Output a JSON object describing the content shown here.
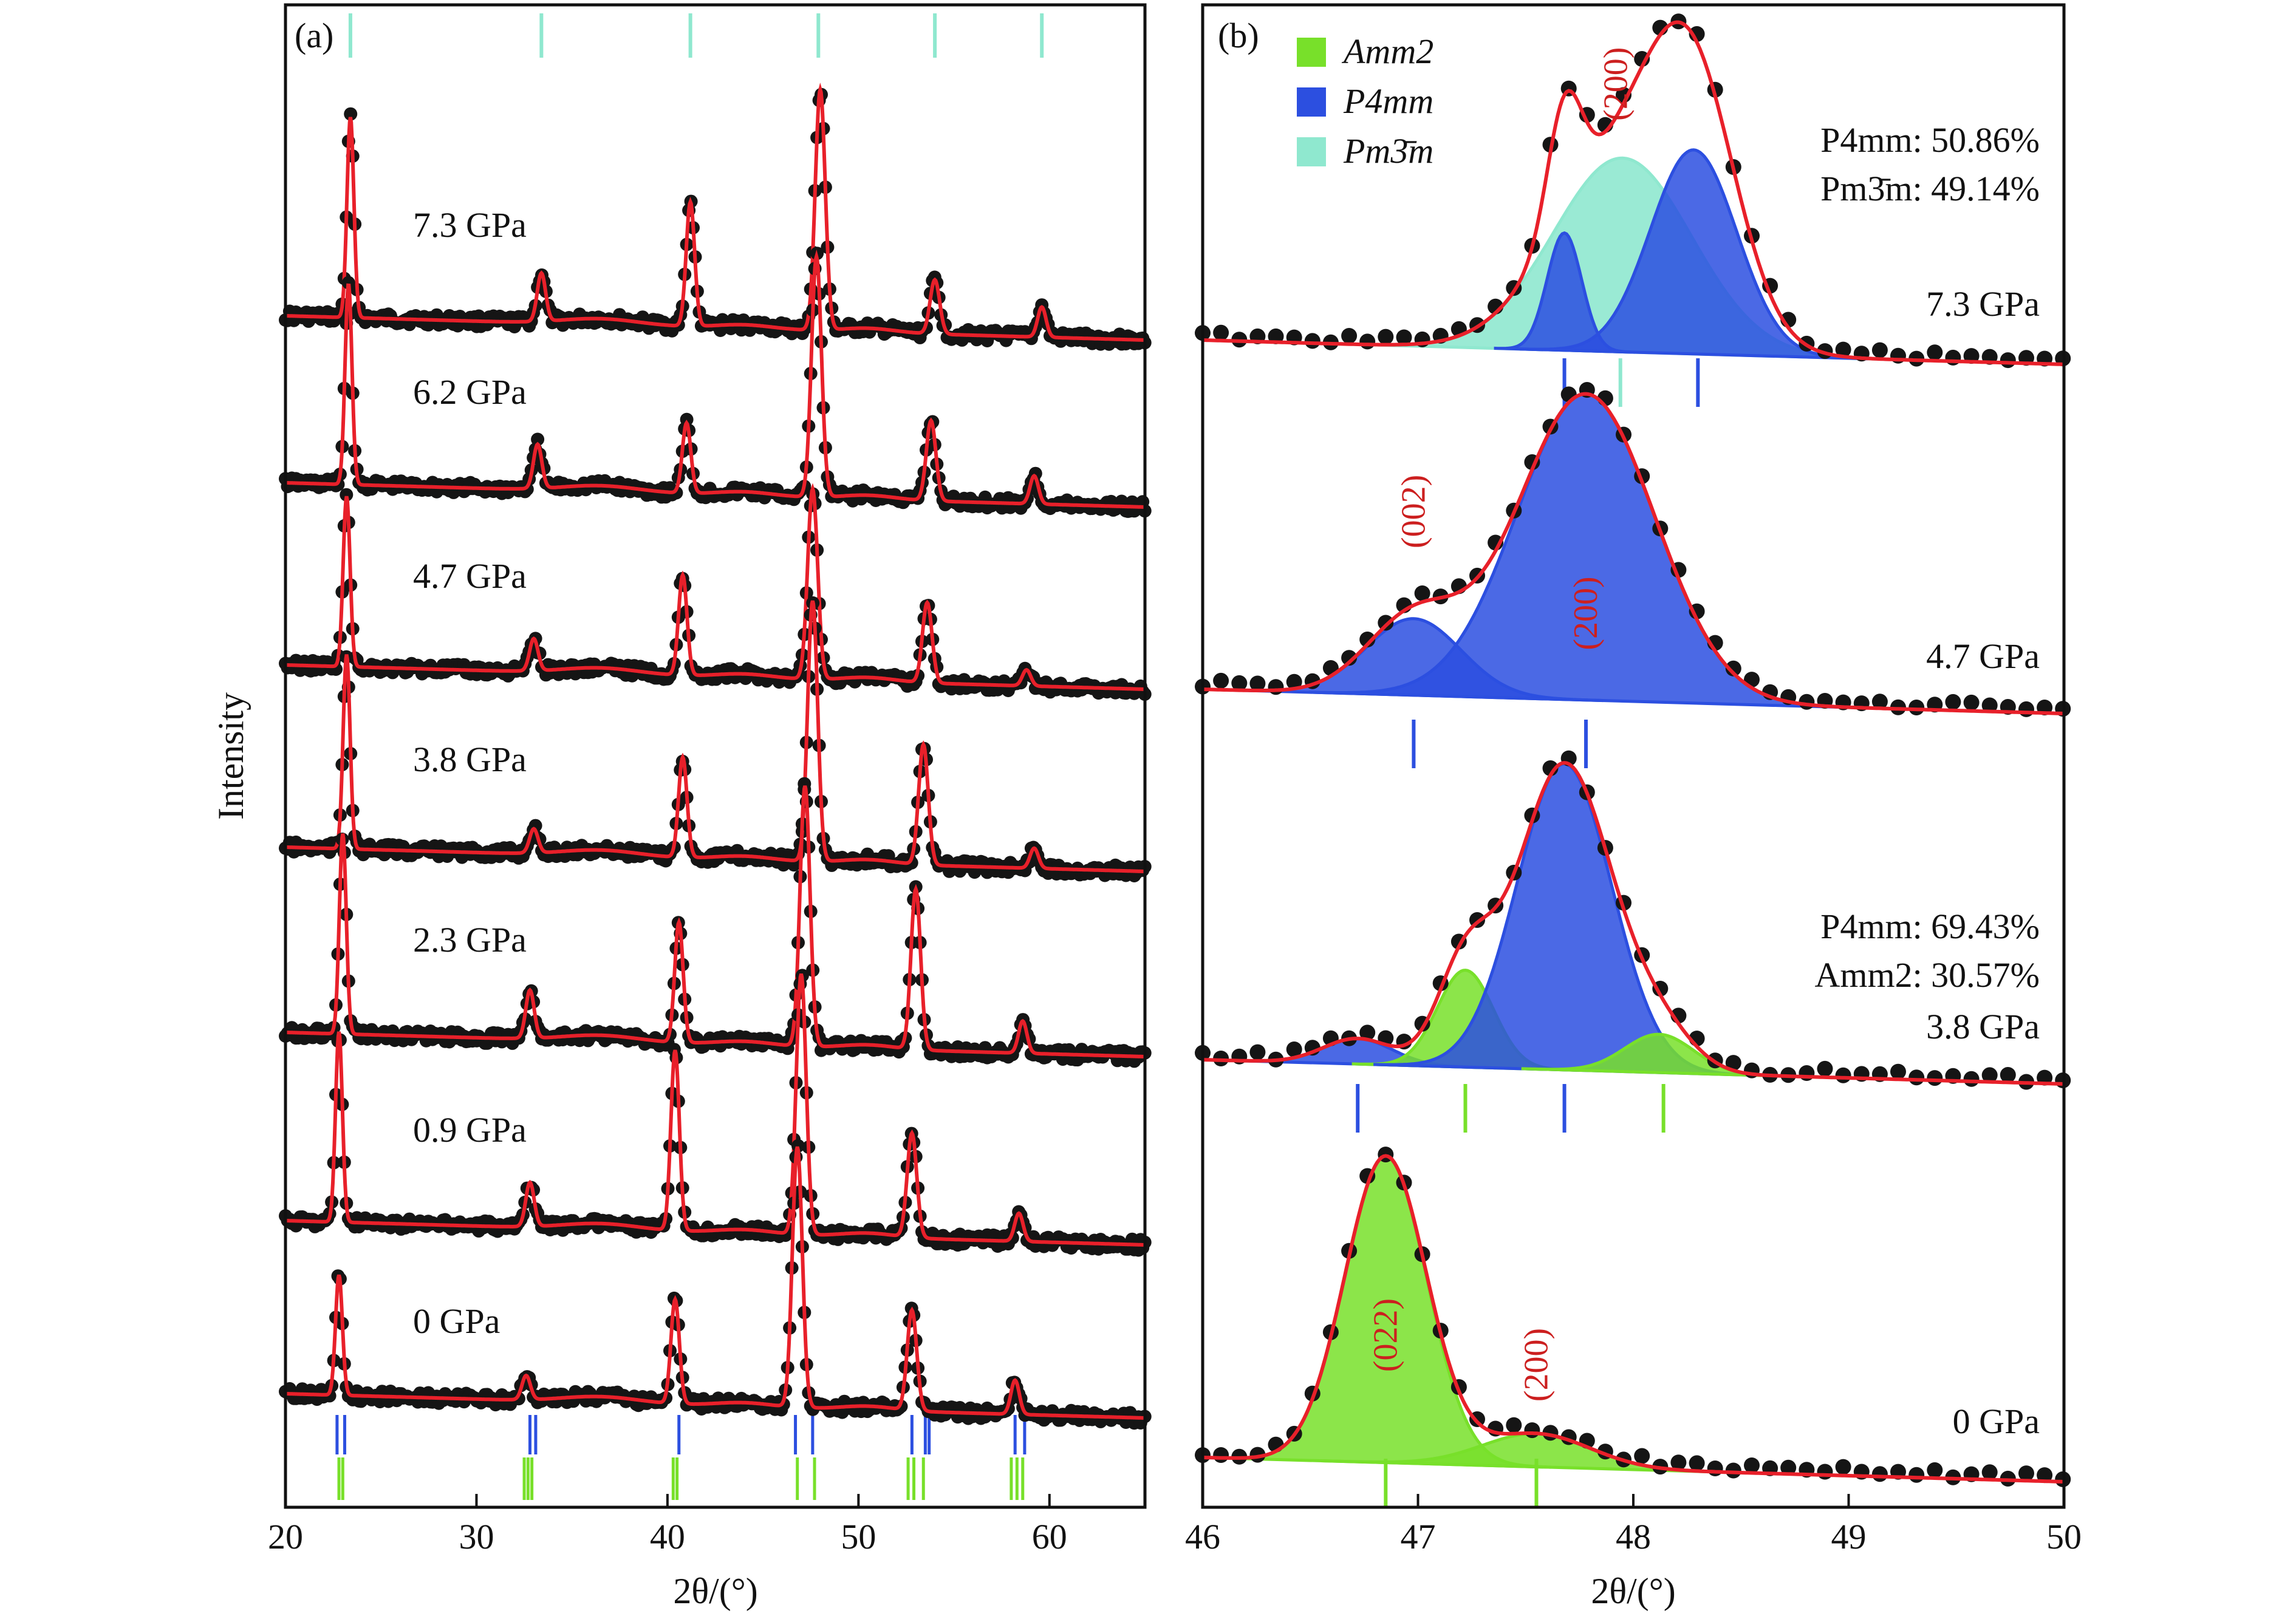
{
  "colors": {
    "fit": "#e8202a",
    "point": "#151515",
    "amm2": "#78e02a",
    "p4mm": "#2c4fe0",
    "pm3m": "#8fe8cf",
    "hkl": "#cc1f1f",
    "axis": "#111111"
  },
  "chart_data": [
    {
      "type": "line",
      "panel": "(a)",
      "xlabel": "2θ/(°)",
      "ylabel": "Intensity",
      "xlim": [
        20,
        65
      ],
      "xticks": [
        "20",
        "30",
        "40",
        "50",
        "60"
      ],
      "series": [
        {
          "name": "7.3 GPa",
          "label": "7.3 GPa",
          "peaks": [
            [
              23.4,
              1.0
            ],
            [
              33.4,
              0.24
            ],
            [
              41.2,
              0.62
            ],
            [
              48.0,
              1.2
            ],
            [
              54.0,
              0.27
            ],
            [
              59.6,
              0.15
            ]
          ]
        },
        {
          "name": "6.2 GPa",
          "label": "6.2 GPa",
          "peaks": [
            [
              23.3,
              1.0
            ],
            [
              33.2,
              0.22
            ],
            [
              41.0,
              0.35
            ],
            [
              47.8,
              1.2
            ],
            [
              53.8,
              0.4
            ],
            [
              59.2,
              0.14
            ]
          ]
        },
        {
          "name": "4.7 GPa",
          "label": "4.7 GPa",
          "peaks": [
            [
              23.2,
              0.85
            ],
            [
              33.0,
              0.16
            ],
            [
              40.8,
              0.5
            ],
            [
              47.6,
              0.95
            ],
            [
              53.6,
              0.4
            ],
            [
              58.8,
              0.08
            ]
          ]
        },
        {
          "name": "3.8 GPa",
          "label": "3.8 GPa",
          "peaks": [
            [
              23.2,
              0.97
            ],
            [
              33.0,
              0.12
            ],
            [
              40.8,
              0.5
            ],
            [
              47.6,
              1.3
            ],
            [
              53.4,
              0.6
            ],
            [
              59.2,
              0.1
            ]
          ]
        },
        {
          "name": "2.3 GPa",
          "label": "2.3 GPa",
          "peaks": [
            [
              23.0,
              1.0
            ],
            [
              32.8,
              0.24
            ],
            [
              40.6,
              0.6
            ],
            [
              47.2,
              1.3
            ],
            [
              53.0,
              0.8
            ],
            [
              58.6,
              0.16
            ]
          ]
        },
        {
          "name": "0.9 GPa",
          "label": "0.9 GPa",
          "peaks": [
            [
              22.8,
              0.95
            ],
            [
              32.8,
              0.22
            ],
            [
              40.4,
              0.9
            ],
            [
              47.0,
              1.3
            ],
            [
              52.8,
              0.52
            ],
            [
              58.4,
              0.14
            ]
          ]
        },
        {
          "name": "0 GPa",
          "label": "0 GPa",
          "peaks": [
            [
              22.8,
              0.6
            ],
            [
              32.6,
              0.12
            ],
            [
              40.4,
              0.52
            ],
            [
              46.8,
              1.3
            ],
            [
              52.8,
              0.5
            ],
            [
              58.2,
              0.17
            ]
          ]
        }
      ],
      "reference_marks": {
        "pm3m": [
          23.4,
          33.4,
          41.2,
          47.9,
          54.0,
          59.6
        ],
        "p4mm": [
          22.7,
          23.1,
          32.8,
          33.1,
          40.6,
          46.7,
          47.6,
          52.8,
          53.5,
          53.7,
          58.2,
          58.7
        ],
        "amm2": [
          22.8,
          23.0,
          32.5,
          32.7,
          32.9,
          40.3,
          40.5,
          46.8,
          47.7,
          52.6,
          52.9,
          53.4,
          58.0,
          58.3,
          58.6
        ]
      }
    },
    {
      "type": "area",
      "panel": "(b)",
      "xlabel": "2θ/(°)",
      "xlim": [
        46,
        50
      ],
      "xticks": [
        "46",
        "47",
        "48",
        "49",
        "50"
      ],
      "legend": [
        {
          "name": "Amm2",
          "key": "amm2",
          "text": "Amm2"
        },
        {
          "name": "P4mm",
          "key": "p4mm",
          "text": "P4mm"
        },
        {
          "name": "Pm3̄m",
          "key": "pm3m",
          "text": "Pm3̄m"
        }
      ],
      "pressures": [
        {
          "label": "7.3 GPa",
          "fractions": [
            "P4mm: 50.86%",
            "Pm3̄m: 49.14%"
          ],
          "components": [
            {
              "phase": "pm3m",
              "center": 47.95,
              "height": 0.76,
              "width": 0.32
            },
            {
              "phase": "p4mm",
              "center": 47.68,
              "height": 0.46,
              "width": 0.08
            },
            {
              "phase": "p4mm",
              "center": 48.28,
              "height": 0.8,
              "width": 0.2
            }
          ],
          "hkl": [
            {
              "text": "(200)",
              "x": 47.92,
              "h": 1.05
            }
          ],
          "ticks": [
            {
              "phase": "p4mm",
              "x": 47.68
            },
            {
              "phase": "pm3m",
              "x": 47.94
            },
            {
              "phase": "p4mm",
              "x": 48.3
            }
          ]
        },
        {
          "label": "4.7 GPa",
          "fractions": [],
          "components": [
            {
              "phase": "p4mm",
              "center": 46.98,
              "height": 0.3,
              "width": 0.22
            },
            {
              "phase": "p4mm",
              "center": 47.78,
              "height": 1.2,
              "width": 0.32
            }
          ],
          "hkl": [
            {
              "text": "(002)",
              "x": 46.98,
              "h": 0.72
            },
            {
              "text": "(200)",
              "x": 47.78,
              "h": 0.34
            }
          ],
          "ticks": [
            {
              "phase": "p4mm",
              "x": 46.98
            },
            {
              "phase": "p4mm",
              "x": 47.78
            }
          ]
        },
        {
          "label": "3.8 GPa",
          "fractions": [
            "P4mm: 69.43%",
            "Amm2: 30.57%"
          ],
          "components": [
            {
              "phase": "p4mm",
              "center": 46.72,
              "height": 0.1,
              "width": 0.16
            },
            {
              "phase": "amm2",
              "center": 47.22,
              "height": 0.38,
              "width": 0.13
            },
            {
              "phase": "p4mm",
              "center": 47.68,
              "height": 1.2,
              "width": 0.22
            },
            {
              "phase": "amm2",
              "center": 48.12,
              "height": 0.15,
              "width": 0.16
            }
          ],
          "hkl": [],
          "ticks": [
            {
              "phase": "p4mm",
              "x": 46.72
            },
            {
              "phase": "amm2",
              "x": 47.22
            },
            {
              "phase": "p4mm",
              "x": 47.68
            },
            {
              "phase": "amm2",
              "x": 48.14
            }
          ]
        },
        {
          "label": "0 GPa",
          "fractions": [],
          "components": [
            {
              "phase": "amm2",
              "center": 46.85,
              "height": 1.2,
              "width": 0.19
            },
            {
              "phase": "amm2",
              "center": 47.55,
              "height": 0.13,
              "width": 0.25
            }
          ],
          "hkl": [
            {
              "text": "(022)",
              "x": 46.85,
              "h": 0.5
            },
            {
              "text": "(200)",
              "x": 47.55,
              "h": 0.4
            }
          ],
          "ticks": [
            {
              "phase": "amm2",
              "x": 46.85
            },
            {
              "phase": "amm2",
              "x": 47.55
            }
          ]
        }
      ]
    }
  ]
}
